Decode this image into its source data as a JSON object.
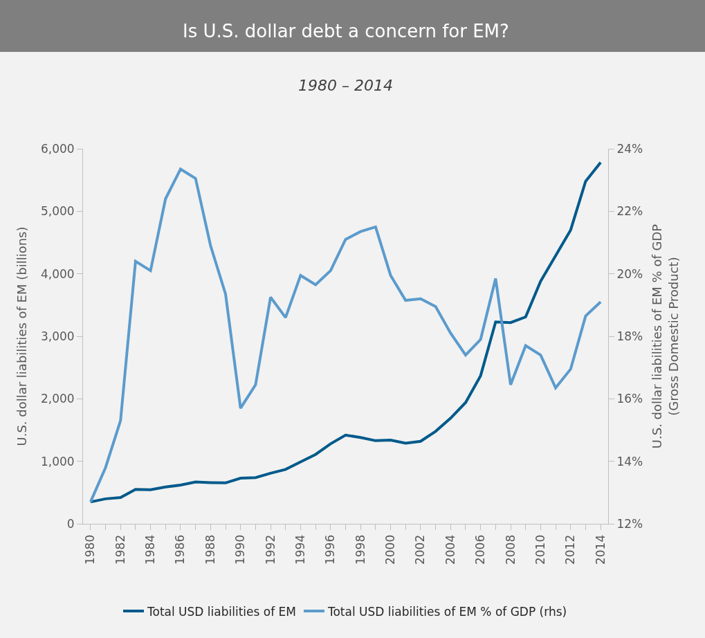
{
  "chart_data": {
    "type": "line",
    "title": "Is U.S. dollar debt a concern for EM?",
    "subtitle": "1980 – 2014",
    "ylabel": "U.S. dollar liabilities of EM (billions)",
    "y2label": "U.S. dollar liabilities of EM % of GDP\n(Gross Domestic Product)",
    "x": [
      1980,
      1981,
      1982,
      1983,
      1984,
      1985,
      1986,
      1987,
      1988,
      1989,
      1990,
      1991,
      1992,
      1993,
      1994,
      1995,
      1996,
      1997,
      1998,
      1999,
      2000,
      2001,
      2002,
      2003,
      2004,
      2005,
      2006,
      2007,
      2008,
      2009,
      2010,
      2011,
      2012,
      2013,
      2014
    ],
    "series": [
      {
        "name": "Total USD liabilities of EM",
        "color": "#005a8b",
        "values": [
          350,
          400,
          420,
          550,
          545,
          590,
          620,
          670,
          660,
          655,
          730,
          740,
          810,
          870,
          990,
          1110,
          1280,
          1420,
          1380,
          1330,
          1340,
          1290,
          1320,
          1480,
          1690,
          1940,
          2370,
          3230,
          3220,
          3310,
          3880,
          4290,
          4700,
          5480,
          5780
        ]
      },
      {
        "name": "Total USD liabilities of EM % of GDP (rhs)",
        "color": "#5b9bcd",
        "axis": "y2",
        "values": [
          12.7,
          13.8,
          15.3,
          20.4,
          20.1,
          22.4,
          23.35,
          23.05,
          20.9,
          19.35,
          15.7,
          16.45,
          19.25,
          18.6,
          19.95,
          19.65,
          20.1,
          21.1,
          21.35,
          21.5,
          19.95,
          19.15,
          19.2,
          18.95,
          18.1,
          17.4,
          17.9,
          19.85,
          16.45,
          17.7,
          17.4,
          16.35,
          16.95,
          18.65,
          19.1
        ]
      }
    ],
    "xlim": [
      1979.5,
      2014.5
    ],
    "xticks": [
      1980,
      {
        "value": 1981,
        "label": null
      },
      1982,
      {
        "value": 1983,
        "label": null
      },
      1984,
      {
        "value": 1985,
        "label": null
      },
      1986,
      {
        "value": 1987,
        "label": null
      },
      1988,
      {
        "value": 1989,
        "label": null
      },
      1990,
      {
        "value": 1991,
        "label": null
      },
      1992,
      {
        "value": 1993,
        "label": null
      },
      1994,
      {
        "value": 1995,
        "label": null
      },
      1996,
      {
        "value": 1997,
        "label": null
      },
      1998,
      {
        "value": 1999,
        "label": null
      },
      2000,
      {
        "value": 2001,
        "label": null
      },
      2002,
      {
        "value": 2003,
        "label": null
      },
      2004,
      {
        "value": 2005,
        "label": null
      },
      2006,
      {
        "value": 2007,
        "label": null
      },
      2008,
      {
        "value": 2009,
        "label": null
      },
      2010,
      {
        "value": 2011,
        "label": null
      },
      2012,
      {
        "value": 2013,
        "label": null
      },
      2014
    ],
    "ylim": [
      0,
      6000
    ],
    "yticks": [
      {
        "value": 0,
        "label": "0"
      },
      {
        "value": 1000,
        "label": "1,000"
      },
      {
        "value": 2000,
        "label": "2,000"
      },
      {
        "value": 3000,
        "label": "3,000"
      },
      {
        "value": 4000,
        "label": "4,000"
      },
      {
        "value": 5000,
        "label": "5,000"
      },
      {
        "value": 6000,
        "label": "6,000"
      }
    ],
    "y2lim": [
      12,
      24
    ],
    "y2ticks": [
      {
        "value": 12,
        "label": "12%"
      },
      {
        "value": 14,
        "label": "14%"
      },
      {
        "value": 16,
        "label": "16%"
      },
      {
        "value": 18,
        "label": "18%"
      },
      {
        "value": 20,
        "label": "20%"
      },
      {
        "value": 22,
        "label": "22%"
      },
      {
        "value": 24,
        "label": "24%"
      }
    ],
    "grid": false,
    "legend": "bottom",
    "marker": "none",
    "line_style": "solid"
  }
}
